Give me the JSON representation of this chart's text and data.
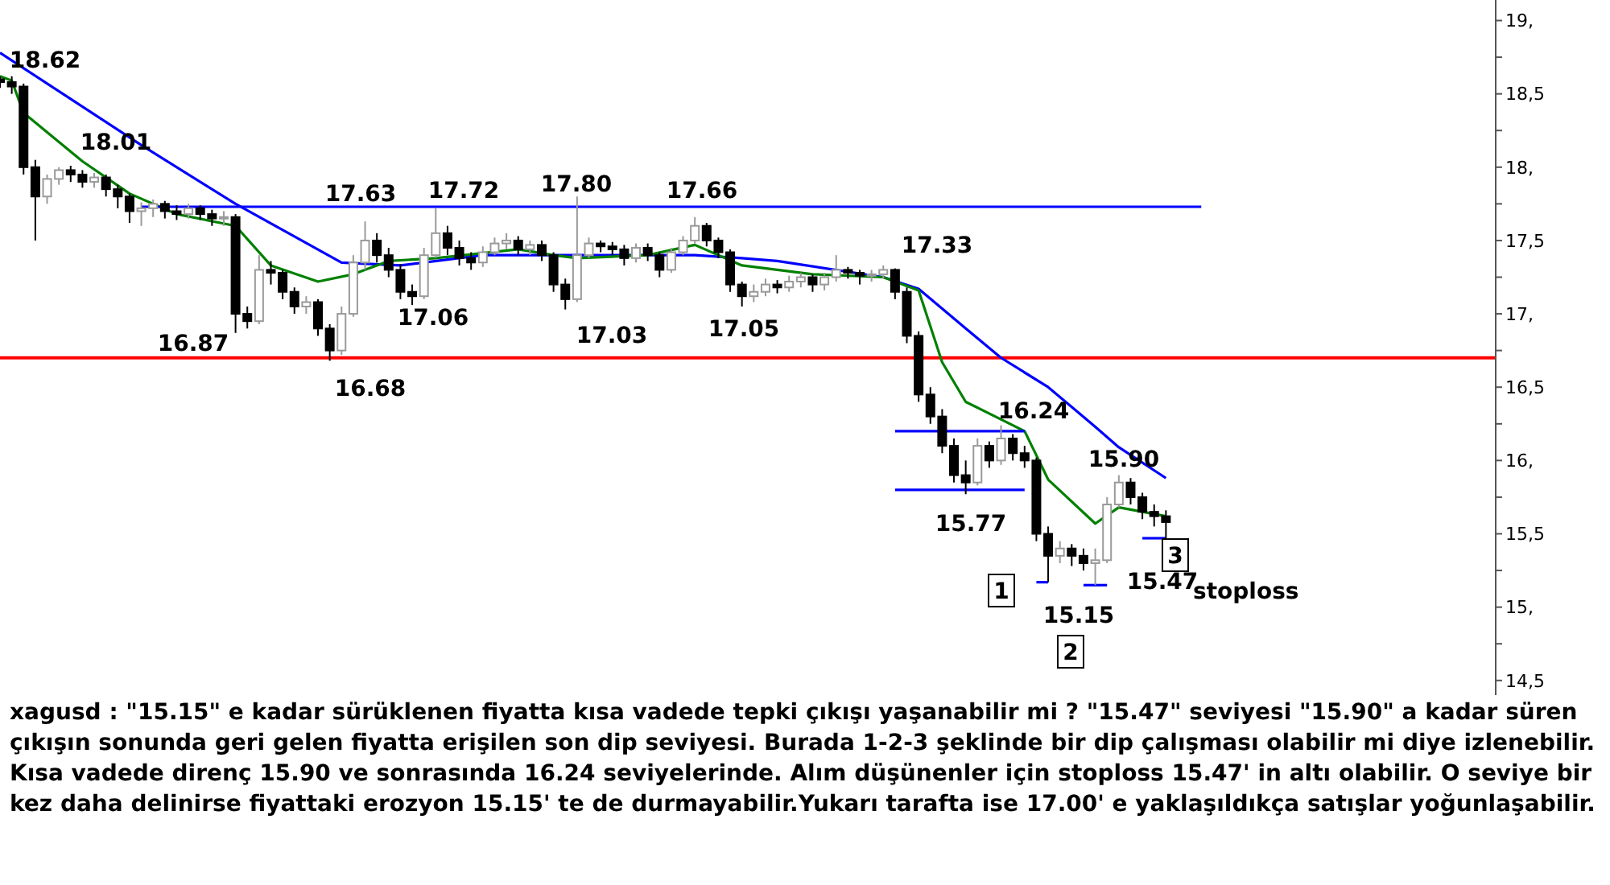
{
  "chart_data": {
    "type": "candlestick",
    "categories": [
      null,
      null,
      null,
      null,
      null,
      null,
      null,
      null,
      null,
      null,
      null,
      null,
      null,
      null,
      null,
      null,
      null,
      null,
      null,
      null,
      null,
      null,
      null,
      null,
      null,
      null,
      null,
      null,
      null,
      null,
      null,
      null,
      null,
      null,
      null,
      null,
      null,
      null,
      null,
      null,
      null,
      null,
      null,
      null,
      null,
      null,
      null,
      null,
      null,
      null,
      null,
      null,
      null,
      null,
      null,
      null,
      null,
      null,
      null,
      null,
      null,
      null,
      null,
      null,
      null,
      null,
      null,
      null,
      null,
      null,
      null,
      null,
      null,
      null,
      null,
      null,
      null,
      null,
      null,
      null,
      null,
      null,
      null,
      null,
      null,
      null,
      null,
      null,
      null,
      null,
      null,
      null,
      null,
      null,
      null,
      null,
      null,
      null,
      null,
      null,
      null,
      null,
      null,
      null,
      null,
      null,
      null,
      null,
      null,
      null,
      null,
      null,
      null,
      null,
      null,
      null,
      null,
      null,
      null,
      null,
      null,
      null,
      null,
      null,
      null,
      null,
      null,
      null
    ],
    "ohlc": [
      [
        18.6,
        18.62,
        18.54,
        18.58
      ],
      [
        18.58,
        18.62,
        18.5,
        18.55
      ],
      [
        18.55,
        18.57,
        17.95,
        18.0
      ],
      [
        18.0,
        18.05,
        17.5,
        17.8
      ],
      [
        17.8,
        17.95,
        17.75,
        17.92
      ],
      [
        17.92,
        18.0,
        17.88,
        17.98
      ],
      [
        17.98,
        18.01,
        17.9,
        17.95
      ],
      [
        17.95,
        17.98,
        17.86,
        17.9
      ],
      [
        17.9,
        17.96,
        17.86,
        17.93
      ],
      [
        17.93,
        17.95,
        17.8,
        17.85
      ],
      [
        17.85,
        17.88,
        17.72,
        17.8
      ],
      [
        17.8,
        17.82,
        17.62,
        17.7
      ],
      [
        17.7,
        17.76,
        17.6,
        17.72
      ],
      [
        17.72,
        17.78,
        17.66,
        17.75
      ],
      [
        17.75,
        17.77,
        17.65,
        17.7
      ],
      [
        17.7,
        17.74,
        17.64,
        17.68
      ],
      [
        17.68,
        17.75,
        17.65,
        17.72
      ],
      [
        17.72,
        17.74,
        17.64,
        17.68
      ],
      [
        17.68,
        17.71,
        17.6,
        17.65
      ],
      [
        17.65,
        17.7,
        17.6,
        17.66
      ],
      [
        17.66,
        17.68,
        16.87,
        17.0
      ],
      [
        17.0,
        17.05,
        16.9,
        16.95
      ],
      [
        16.95,
        17.4,
        16.93,
        17.3
      ],
      [
        17.3,
        17.36,
        17.2,
        17.28
      ],
      [
        17.28,
        17.3,
        17.1,
        17.15
      ],
      [
        17.15,
        17.18,
        17.0,
        17.05
      ],
      [
        17.05,
        17.12,
        17.0,
        17.08
      ],
      [
        17.08,
        17.1,
        16.85,
        16.9
      ],
      [
        16.9,
        16.93,
        16.68,
        16.75
      ],
      [
        16.75,
        17.05,
        16.72,
        17.0
      ],
      [
        17.0,
        17.4,
        16.98,
        17.35
      ],
      [
        17.35,
        17.63,
        17.3,
        17.5
      ],
      [
        17.5,
        17.55,
        17.35,
        17.4
      ],
      [
        17.4,
        17.45,
        17.25,
        17.3
      ],
      [
        17.3,
        17.34,
        17.1,
        17.15
      ],
      [
        17.15,
        17.2,
        17.06,
        17.12
      ],
      [
        17.12,
        17.45,
        17.1,
        17.4
      ],
      [
        17.4,
        17.72,
        17.38,
        17.55
      ],
      [
        17.55,
        17.6,
        17.4,
        17.45
      ],
      [
        17.45,
        17.5,
        17.33,
        17.38
      ],
      [
        17.38,
        17.42,
        17.3,
        17.35
      ],
      [
        17.35,
        17.46,
        17.32,
        17.42
      ],
      [
        17.42,
        17.52,
        17.4,
        17.48
      ],
      [
        17.48,
        17.55,
        17.44,
        17.5
      ],
      [
        17.5,
        17.53,
        17.4,
        17.44
      ],
      [
        17.44,
        17.5,
        17.4,
        17.47
      ],
      [
        17.47,
        17.5,
        17.36,
        17.4
      ],
      [
        17.4,
        17.42,
        17.15,
        17.2
      ],
      [
        17.2,
        17.24,
        17.03,
        17.1
      ],
      [
        17.1,
        17.8,
        17.08,
        17.4
      ],
      [
        17.4,
        17.52,
        17.38,
        17.48
      ],
      [
        17.48,
        17.5,
        17.42,
        17.46
      ],
      [
        17.46,
        17.49,
        17.4,
        17.44
      ],
      [
        17.44,
        17.47,
        17.33,
        17.38
      ],
      [
        17.38,
        17.48,
        17.35,
        17.45
      ],
      [
        17.45,
        17.48,
        17.36,
        17.4
      ],
      [
        17.4,
        17.42,
        17.25,
        17.3
      ],
      [
        17.3,
        17.45,
        17.28,
        17.42
      ],
      [
        17.42,
        17.53,
        17.4,
        17.5
      ],
      [
        17.5,
        17.66,
        17.48,
        17.6
      ],
      [
        17.6,
        17.62,
        17.46,
        17.5
      ],
      [
        17.5,
        17.52,
        17.38,
        17.42
      ],
      [
        17.42,
        17.44,
        17.15,
        17.2
      ],
      [
        17.2,
        17.22,
        17.05,
        17.12
      ],
      [
        17.12,
        17.2,
        17.08,
        17.15
      ],
      [
        17.15,
        17.24,
        17.12,
        17.2
      ],
      [
        17.2,
        17.23,
        17.14,
        17.18
      ],
      [
        17.18,
        17.26,
        17.15,
        17.22
      ],
      [
        17.22,
        17.28,
        17.18,
        17.25
      ],
      [
        17.25,
        17.27,
        17.15,
        17.2
      ],
      [
        17.2,
        17.28,
        17.16,
        17.25
      ],
      [
        17.25,
        17.4,
        17.22,
        17.3
      ],
      [
        17.3,
        17.32,
        17.24,
        17.28
      ],
      [
        17.28,
        17.3,
        17.2,
        17.26
      ],
      [
        17.26,
        17.3,
        17.22,
        17.27
      ],
      [
        17.27,
        17.33,
        17.24,
        17.3
      ],
      [
        17.3,
        17.31,
        17.1,
        17.15
      ],
      [
        17.15,
        17.18,
        16.8,
        16.85
      ],
      [
        16.85,
        16.88,
        16.4,
        16.45
      ],
      [
        16.45,
        16.5,
        16.25,
        16.3
      ],
      [
        16.3,
        16.35,
        16.05,
        16.1
      ],
      [
        16.1,
        16.15,
        15.85,
        15.9
      ],
      [
        15.9,
        16.0,
        15.77,
        15.85
      ],
      [
        15.85,
        16.15,
        15.83,
        16.1
      ],
      [
        16.1,
        16.13,
        15.95,
        16.0
      ],
      [
        16.0,
        16.24,
        15.97,
        16.15
      ],
      [
        16.15,
        16.18,
        16.0,
        16.05
      ],
      [
        16.05,
        16.1,
        15.95,
        16.0
      ],
      [
        16.0,
        16.02,
        15.45,
        15.5
      ],
      [
        15.5,
        15.55,
        15.17,
        15.35
      ],
      [
        15.35,
        15.45,
        15.3,
        15.4
      ],
      [
        15.4,
        15.43,
        15.28,
        15.35
      ],
      [
        15.35,
        15.4,
        15.25,
        15.3
      ],
      [
        15.3,
        15.4,
        15.15,
        15.32
      ],
      [
        15.32,
        15.75,
        15.3,
        15.7
      ],
      [
        15.7,
        15.9,
        15.68,
        15.85
      ],
      [
        15.85,
        15.88,
        15.7,
        15.75
      ],
      [
        15.75,
        15.78,
        15.6,
        15.65
      ],
      [
        15.65,
        15.7,
        15.55,
        15.62
      ],
      [
        15.62,
        15.66,
        15.47,
        15.58
      ],
      null,
      null,
      null,
      null,
      null,
      null,
      null,
      null,
      null,
      null,
      null,
      null,
      null,
      null,
      null,
      null,
      null,
      null,
      null,
      null,
      null,
      null,
      null,
      null,
      null,
      null,
      null,
      null
    ],
    "series": [
      {
        "type": "line",
        "color": "#0000ff",
        "values": [
          18.78,
          null,
          null,
          null,
          null,
          null,
          null,
          null,
          null,
          null,
          null,
          null,
          18.15,
          null,
          null,
          null,
          null,
          null,
          null,
          null,
          17.75,
          null,
          null,
          null,
          null,
          null,
          null,
          null,
          null,
          17.35,
          null,
          null,
          null,
          null,
          17.33,
          null,
          null,
          null,
          null,
          null,
          null,
          17.4,
          null,
          null,
          null,
          null,
          null,
          null,
          null,
          17.4,
          null,
          null,
          null,
          null,
          null,
          17.4,
          null,
          null,
          null,
          17.4,
          null,
          null,
          null,
          17.38,
          null,
          null,
          17.36,
          null,
          null,
          null,
          null,
          null,
          null,
          null,
          null,
          17.25,
          null,
          null,
          17.17,
          null,
          null,
          null,
          16.9,
          null,
          null,
          16.7,
          null,
          null,
          null,
          16.5,
          null,
          null,
          null,
          16.23,
          null,
          16.09,
          null,
          null,
          null,
          15.88,
          null,
          null,
          null,
          null,
          null,
          null,
          null,
          null,
          null,
          null,
          null,
          null,
          null,
          null,
          null,
          null,
          null,
          null,
          null,
          null,
          null,
          null,
          null,
          null,
          null,
          null,
          null,
          null
        ]
      },
      {
        "type": "line",
        "color": "#008000",
        "values": [
          18.62,
          18.59,
          18.37,
          null,
          null,
          null,
          null,
          18.04,
          null,
          null,
          null,
          17.82,
          null,
          null,
          null,
          17.68,
          null,
          null,
          null,
          null,
          17.6,
          null,
          null,
          17.33,
          null,
          null,
          null,
          17.22,
          null,
          null,
          17.27,
          null,
          null,
          17.36,
          null,
          null,
          null,
          17.38,
          null,
          null,
          null,
          null,
          null,
          null,
          17.44,
          null,
          null,
          17.4,
          null,
          17.38,
          null,
          null,
          null,
          null,
          null,
          17.4,
          null,
          null,
          null,
          17.47,
          null,
          null,
          null,
          17.33,
          null,
          null,
          null,
          null,
          null,
          17.27,
          null,
          null,
          null,
          null,
          null,
          17.25,
          null,
          null,
          17.16,
          null,
          16.67,
          null,
          16.4,
          null,
          null,
          null,
          null,
          16.2,
          null,
          15.87,
          null,
          null,
          null,
          15.57,
          null,
          15.68,
          null,
          null,
          null,
          15.62,
          null,
          null,
          null,
          null,
          null,
          null,
          null,
          null,
          null,
          null,
          null,
          null,
          null,
          null,
          null,
          null,
          null,
          null,
          null,
          null,
          null,
          null,
          null,
          null,
          null,
          null,
          null,
          null
        ]
      },
      {
        "type": "line",
        "color": "#0000ff",
        "values": [
          null,
          null,
          null,
          null,
          null,
          null,
          null,
          null,
          null,
          null,
          null,
          null,
          17.73,
          null,
          null,
          null,
          null,
          null,
          null,
          null,
          null,
          null,
          null,
          null,
          null,
          null,
          null,
          null,
          null,
          null,
          null,
          null,
          null,
          null,
          null,
          null,
          null,
          null,
          null,
          null,
          null,
          null,
          null,
          null,
          null,
          null,
          null,
          null,
          null,
          null,
          null,
          null,
          null,
          null,
          null,
          null,
          null,
          null,
          null,
          null,
          null,
          null,
          null,
          null,
          null,
          null,
          null,
          null,
          null,
          null,
          null,
          null,
          null,
          null,
          null,
          null,
          null,
          null,
          null,
          null,
          null,
          null,
          null,
          null,
          null,
          null,
          null,
          null,
          null,
          null,
          null,
          null,
          null,
          null,
          null,
          null,
          null,
          null,
          null,
          null,
          null,
          null,
          17.73,
          null,
          null,
          null,
          null,
          null,
          null,
          null,
          null,
          null,
          null,
          null,
          null,
          null,
          null,
          null,
          null,
          null,
          null,
          null,
          null,
          null,
          null,
          null,
          null,
          null
        ]
      },
      {
        "type": "line",
        "color": "#0000ff",
        "values": [
          null,
          null,
          null,
          null,
          null,
          null,
          null,
          null,
          null,
          null,
          null,
          null,
          null,
          null,
          null,
          null,
          null,
          null,
          null,
          null,
          null,
          null,
          null,
          null,
          null,
          null,
          null,
          null,
          null,
          null,
          null,
          null,
          null,
          null,
          null,
          null,
          null,
          null,
          null,
          null,
          null,
          null,
          null,
          null,
          null,
          null,
          null,
          null,
          null,
          null,
          null,
          null,
          null,
          null,
          null,
          null,
          null,
          null,
          null,
          null,
          null,
          null,
          null,
          null,
          null,
          null,
          null,
          null,
          null,
          null,
          null,
          null,
          null,
          null,
          null,
          null,
          16.2,
          null,
          null,
          null,
          null,
          null,
          null,
          null,
          null,
          null,
          null,
          16.2,
          null,
          null,
          null,
          null,
          null,
          null,
          null,
          null,
          null,
          null,
          null,
          null,
          null,
          null,
          null,
          null,
          null,
          null,
          null,
          null,
          null,
          null,
          null,
          null,
          null,
          null,
          null,
          null,
          null,
          null,
          null,
          null,
          null,
          null,
          null,
          null,
          null,
          null,
          null,
          null
        ]
      },
      {
        "type": "line",
        "color": "#0000ff",
        "values": [
          null,
          null,
          null,
          null,
          null,
          null,
          null,
          null,
          null,
          null,
          null,
          null,
          null,
          null,
          null,
          null,
          null,
          null,
          null,
          null,
          null,
          null,
          null,
          null,
          null,
          null,
          null,
          null,
          null,
          null,
          null,
          null,
          null,
          null,
          null,
          null,
          null,
          null,
          null,
          null,
          null,
          null,
          null,
          null,
          null,
          null,
          null,
          null,
          null,
          null,
          null,
          null,
          null,
          null,
          null,
          null,
          null,
          null,
          null,
          null,
          null,
          null,
          null,
          null,
          null,
          null,
          null,
          null,
          null,
          null,
          null,
          null,
          null,
          null,
          null,
          null,
          15.8,
          null,
          null,
          null,
          null,
          null,
          null,
          null,
          null,
          null,
          null,
          15.8,
          null,
          null,
          null,
          null,
          null,
          null,
          null,
          null,
          null,
          null,
          null,
          null,
          null,
          null,
          null,
          null,
          null,
          null,
          null,
          null,
          null,
          null,
          null,
          null,
          null,
          null,
          null,
          null,
          null,
          null,
          null,
          null,
          null,
          null,
          null,
          null,
          null,
          null,
          null,
          null
        ]
      },
      {
        "type": "line",
        "color": "#0000ff",
        "values": [
          null,
          null,
          null,
          null,
          null,
          null,
          null,
          null,
          null,
          null,
          null,
          null,
          null,
          null,
          null,
          null,
          null,
          null,
          null,
          null,
          null,
          null,
          null,
          null,
          null,
          null,
          null,
          null,
          null,
          null,
          null,
          null,
          null,
          null,
          null,
          null,
          null,
          null,
          null,
          null,
          null,
          null,
          null,
          null,
          null,
          null,
          null,
          null,
          null,
          null,
          null,
          null,
          null,
          null,
          null,
          null,
          null,
          null,
          null,
          null,
          null,
          null,
          null,
          null,
          null,
          null,
          null,
          null,
          null,
          null,
          null,
          null,
          null,
          null,
          null,
          null,
          null,
          null,
          null,
          null,
          null,
          null,
          null,
          null,
          null,
          null,
          null,
          null,
          15.17,
          15.17,
          null,
          null,
          null,
          null,
          null,
          null,
          null,
          null,
          null,
          null,
          null,
          null,
          null,
          null,
          null,
          null,
          null,
          null,
          null,
          null,
          null,
          null,
          null,
          null,
          null,
          null,
          null,
          null,
          null,
          null,
          null,
          null,
          null,
          null,
          null,
          null,
          null,
          null
        ]
      },
      {
        "type": "line",
        "color": "#0000ff",
        "values": [
          null,
          null,
          null,
          null,
          null,
          null,
          null,
          null,
          null,
          null,
          null,
          null,
          null,
          null,
          null,
          null,
          null,
          null,
          null,
          null,
          null,
          null,
          null,
          null,
          null,
          null,
          null,
          null,
          null,
          null,
          null,
          null,
          null,
          null,
          null,
          null,
          null,
          null,
          null,
          null,
          null,
          null,
          null,
          null,
          null,
          null,
          null,
          null,
          null,
          null,
          null,
          null,
          null,
          null,
          null,
          null,
          null,
          null,
          null,
          null,
          null,
          null,
          null,
          null,
          null,
          null,
          null,
          null,
          null,
          null,
          null,
          null,
          null,
          null,
          null,
          null,
          null,
          null,
          null,
          null,
          null,
          null,
          null,
          null,
          null,
          null,
          null,
          null,
          null,
          null,
          null,
          null,
          15.15,
          null,
          15.15,
          null,
          null,
          null,
          null,
          null,
          null,
          null,
          null,
          null,
          null,
          null,
          null,
          null,
          null,
          null,
          null,
          null,
          null,
          null,
          null,
          null,
          null,
          null,
          null,
          null,
          null,
          null,
          null,
          null,
          null,
          null,
          null,
          null
        ]
      },
      {
        "type": "line",
        "color": "#0000ff",
        "values": [
          null,
          null,
          null,
          null,
          null,
          null,
          null,
          null,
          null,
          null,
          null,
          null,
          null,
          null,
          null,
          null,
          null,
          null,
          null,
          null,
          null,
          null,
          null,
          null,
          null,
          null,
          null,
          null,
          null,
          null,
          null,
          null,
          null,
          null,
          null,
          null,
          null,
          null,
          null,
          null,
          null,
          null,
          null,
          null,
          null,
          null,
          null,
          null,
          null,
          null,
          null,
          null,
          null,
          null,
          null,
          null,
          null,
          null,
          null,
          null,
          null,
          null,
          null,
          null,
          null,
          null,
          null,
          null,
          null,
          null,
          null,
          null,
          null,
          null,
          null,
          null,
          null,
          null,
          null,
          null,
          null,
          null,
          null,
          null,
          null,
          null,
          null,
          null,
          null,
          null,
          null,
          null,
          null,
          null,
          null,
          null,
          null,
          15.47,
          null,
          15.47,
          null,
          null,
          null,
          null,
          null,
          null,
          null,
          null,
          null,
          null,
          null,
          null,
          null,
          null,
          null,
          null,
          null,
          null,
          null,
          null,
          null,
          null,
          null,
          null,
          null,
          null,
          null,
          null
        ]
      }
    ],
    "ref_lines": [
      {
        "axis": "y",
        "value": 16.7,
        "color": "#ff0000"
      }
    ],
    "ylim": [
      14.4,
      19.14
    ],
    "yticks": [
      {
        "value": 14.5,
        "label": "14,5"
      },
      {
        "value": 14.75,
        "label": null
      },
      {
        "value": 15,
        "label": "15,"
      },
      {
        "value": 15.25,
        "label": null
      },
      {
        "value": 15.5,
        "label": "15,5"
      },
      {
        "value": 15.75,
        "label": null
      },
      {
        "value": 16,
        "label": "16,"
      },
      {
        "value": 16.25,
        "label": null
      },
      {
        "value": 16.5,
        "label": "16,5"
      },
      {
        "value": 16.75,
        "label": null
      },
      {
        "value": 17,
        "label": "17,"
      },
      {
        "value": 17.25,
        "label": null
      },
      {
        "value": 17.5,
        "label": "17,5"
      },
      {
        "value": 17.75,
        "label": null
      },
      {
        "value": 18,
        "label": "18,"
      },
      {
        "value": 18.25,
        "label": null
      },
      {
        "value": 18.5,
        "label": "18,5"
      },
      {
        "value": 18.75,
        "label": null
      },
      {
        "value": 19,
        "label": "19,"
      }
    ],
    "tick_labels": "y",
    "annotations": [
      "18.62",
      "18.01",
      "17.63",
      "16.87",
      "16.68",
      "17.72",
      "17.06",
      "17.80",
      "17.03",
      "17.66",
      "17.05",
      "17.33",
      "16.24",
      "15.77",
      "15.90",
      "15.15",
      "15.47",
      "1",
      "2",
      "3",
      "stoploss",
      "xagusd : \"15.15\" e kadar sürüklenen fiyatta kısa vadede tepki çıkışı yaşanabilir mi ? \"15.47\" seviyesi \"15.90\" a kadar süren çıkışın sonunda geri gelen fiyatta erişilen son dip seviyesi. Burada 1-2-3 şeklinde bir dip çalışması olabilir mi diye izlenebilir. Kısa vadede direnç 15.90 ve sonrasında 16.24 seviyelerinde. Alım düşünenler için stoploss 15.47' in altı olabilir. O seviye bir kez daha delinirse fiyattaki erozyon 15.15' te de durmayabilir.Yukarı tarafta ise 17.00' e yaklaşıldıkça satışlar yoğunlaşabilir."
    ]
  }
}
